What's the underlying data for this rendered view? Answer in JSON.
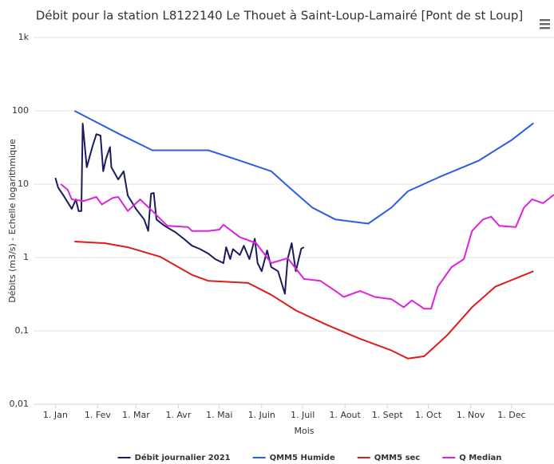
{
  "chart_data": {
    "type": "line",
    "title": "Débit pour la station L8122140 Le Thouet à Saint-Loup-Lamairé [Pont de st Loup]",
    "x_label": "Mois",
    "y_label": "Débits (m3/s) - Echelle logarithmique",
    "log_scale": true,
    "xlim": [
      -16,
      365
    ],
    "xticks": [
      {
        "value": 0,
        "label": "1. Jan"
      },
      {
        "value": 31,
        "label": "1. Fev"
      },
      {
        "value": 59,
        "label": "1. Mar"
      },
      {
        "value": 90,
        "label": "1. Avr"
      },
      {
        "value": 120,
        "label": "1. Mai"
      },
      {
        "value": 151,
        "label": "1. Juin"
      },
      {
        "value": 181,
        "label": "1. Juil"
      },
      {
        "value": 212,
        "label": "1. Aout"
      },
      {
        "value": 243,
        "label": "1. Sept"
      },
      {
        "value": 273,
        "label": "1. Oct"
      },
      {
        "value": 304,
        "label": "1. Nov"
      },
      {
        "value": 334,
        "label": "1. Dec"
      }
    ],
    "ylim": [
      0.01,
      1000
    ],
    "yticks": [
      {
        "value": 0.01,
        "label": "0,01"
      },
      {
        "value": 0.1,
        "label": "0,1"
      },
      1,
      10,
      100,
      {
        "value": 1000,
        "label": "1k"
      }
    ],
    "grid": true,
    "legend": "bottom",
    "series": [
      {
        "name": "Débit journalier 2021",
        "color": "#1b1b5e",
        "x": [
          0,
          2,
          6,
          12,
          15,
          17,
          19,
          20,
          23,
          27,
          30,
          33,
          35,
          37,
          40,
          41,
          46,
          50,
          53,
          59,
          65,
          68,
          70,
          72,
          74,
          80,
          88,
          94,
          100,
          106,
          112,
          117,
          123,
          125,
          128,
          130,
          135,
          138,
          142,
          146,
          148,
          151,
          155,
          158,
          163,
          168,
          170,
          173,
          176,
          180,
          182
        ],
        "values": [
          12.2,
          9,
          7,
          4.6,
          6.2,
          4.3,
          4.3,
          67,
          17,
          32,
          48,
          46,
          15,
          22,
          32,
          17,
          11.6,
          15,
          7,
          4.6,
          3.3,
          2.3,
          7.4,
          7.6,
          3.3,
          2.7,
          2.2,
          1.8,
          1.45,
          1.3,
          1.13,
          0.95,
          0.84,
          1.38,
          0.95,
          1.3,
          1.08,
          1.45,
          0.95,
          1.8,
          0.84,
          0.65,
          1.25,
          0.74,
          0.65,
          0.32,
          0.95,
          1.57,
          0.65,
          1.32,
          1.38
        ]
      },
      {
        "name": "QMM5 Humide",
        "color": "#2a5ee8",
        "x": [
          14,
          47,
          71,
          112,
          135,
          158,
          169,
          188,
          205,
          229,
          246,
          258,
          281,
          310,
          334,
          350
        ],
        "values": [
          100,
          48,
          29,
          29,
          21,
          15,
          9.8,
          4.8,
          3.3,
          2.9,
          4.8,
          8,
          12.5,
          21,
          40,
          68
        ]
      },
      {
        "name": "QMM5 sec",
        "color": "#dd1c1c",
        "x": [
          14,
          36,
          53,
          77,
          100,
          112,
          141,
          158,
          176,
          199,
          223,
          246,
          258,
          270,
          287,
          305,
          322,
          350
        ],
        "values": [
          1.65,
          1.57,
          1.38,
          1.02,
          0.58,
          0.48,
          0.45,
          0.31,
          0.19,
          0.12,
          0.078,
          0.054,
          0.042,
          0.045,
          0.088,
          0.21,
          0.4,
          0.65
        ]
      },
      {
        "name": "Q Median",
        "color": "#dd22dd",
        "x": [
          4,
          9,
          12,
          21,
          30,
          34,
          42,
          46,
          53,
          62,
          71,
          82,
          97,
          100,
          112,
          120,
          123,
          135,
          147,
          158,
          170,
          182,
          194,
          205,
          211,
          223,
          234,
          246,
          255,
          261,
          270,
          275,
          280,
          290,
          299,
          305,
          313,
          319,
          325,
          337,
          343,
          349,
          357,
          365
        ],
        "values": [
          10,
          8.4,
          6.2,
          5.9,
          6.7,
          5.3,
          6.5,
          6.7,
          4.3,
          6.2,
          4.3,
          2.7,
          2.6,
          2.3,
          2.3,
          2.4,
          2.8,
          1.9,
          1.57,
          0.84,
          0.98,
          0.51,
          0.48,
          0.35,
          0.29,
          0.35,
          0.29,
          0.27,
          0.21,
          0.26,
          0.2,
          0.2,
          0.4,
          0.74,
          0.95,
          2.3,
          3.3,
          3.6,
          2.7,
          2.6,
          4.8,
          6.2,
          5.5,
          7.2
        ]
      }
    ]
  }
}
